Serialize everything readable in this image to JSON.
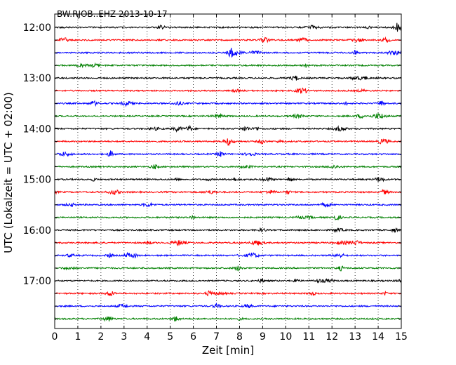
{
  "chart_data": {
    "type": "line",
    "chart_kind": "dayplot seismogram",
    "title": "BW.RJOB..EHZ 2013-10-17",
    "xlabel": "Zeit  [min]",
    "ylabel": "UTC (Lokalzeit = UTC + 02:00)",
    "xlim": [
      0,
      15
    ],
    "x_ticks": [
      "0",
      "1",
      "2",
      "3",
      "4",
      "5",
      "6",
      "7",
      "8",
      "9",
      "10",
      "11",
      "12",
      "13",
      "14",
      "15"
    ],
    "x_grid": "dotted vertical at each minute",
    "y_tick_labels": [
      "12:00",
      "13:00",
      "14:00",
      "15:00",
      "16:00",
      "17:00"
    ],
    "rows_per_hour": 4,
    "row_interval_minutes": 15,
    "series": [
      {
        "start_utc": "12:00",
        "color": "#000000"
      },
      {
        "start_utc": "12:15",
        "color": "#ff0000"
      },
      {
        "start_utc": "12:30",
        "color": "#0000ff"
      },
      {
        "start_utc": "12:45",
        "color": "#008000"
      },
      {
        "start_utc": "13:00",
        "color": "#000000"
      },
      {
        "start_utc": "13:15",
        "color": "#ff0000"
      },
      {
        "start_utc": "13:30",
        "color": "#0000ff"
      },
      {
        "start_utc": "13:45",
        "color": "#008000"
      },
      {
        "start_utc": "14:00",
        "color": "#000000"
      },
      {
        "start_utc": "14:15",
        "color": "#ff0000"
      },
      {
        "start_utc": "14:30",
        "color": "#0000ff"
      },
      {
        "start_utc": "14:45",
        "color": "#008000"
      },
      {
        "start_utc": "15:00",
        "color": "#000000"
      },
      {
        "start_utc": "15:15",
        "color": "#ff0000"
      },
      {
        "start_utc": "15:30",
        "color": "#0000ff"
      },
      {
        "start_utc": "15:45",
        "color": "#008000"
      },
      {
        "start_utc": "16:00",
        "color": "#000000"
      },
      {
        "start_utc": "16:15",
        "color": "#ff0000"
      },
      {
        "start_utc": "16:30",
        "color": "#0000ff"
      },
      {
        "start_utc": "16:45",
        "color": "#008000"
      },
      {
        "start_utc": "17:00",
        "color": "#000000"
      },
      {
        "start_utc": "17:15",
        "color": "#ff0000"
      },
      {
        "start_utc": "17:30",
        "color": "#0000ff"
      },
      {
        "start_utc": "17:45",
        "color": "#008000"
      }
    ]
  }
}
